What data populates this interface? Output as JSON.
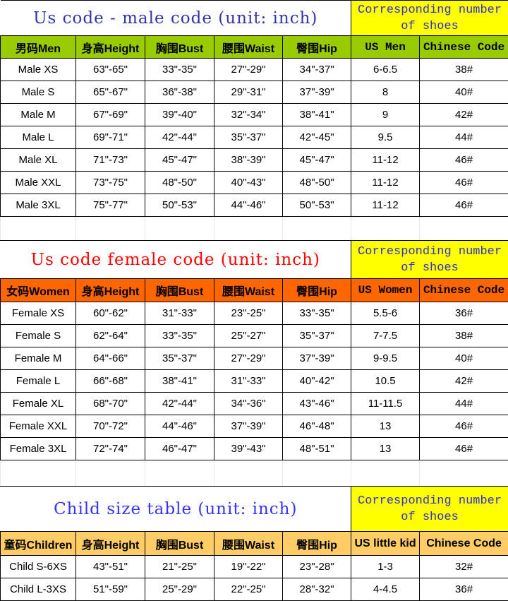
{
  "colors": {
    "male_header": "#99cc00",
    "female_header": "#ff6600",
    "child_header": "#ffcc66",
    "shoe_title": "#ffff00"
  },
  "sections": [
    {
      "title": "Us code - male code (unit: inch)",
      "title_color": "#3333aa",
      "shoe_title": "Corresponding number of shoes",
      "headers": [
        "男码Men",
        "身高Height",
        "胸围Bust",
        "腰围Waist",
        "臀围Hip",
        "US Men",
        "Chinese Code"
      ],
      "rows": [
        [
          "Male XS",
          "63\"-65\"",
          "33\"-35\"",
          "27\"-29\"",
          "34\"-37\"",
          "6-6.5",
          "38#"
        ],
        [
          "Male S",
          "65\"-67\"",
          "36\"-38\"",
          "29\"-31\"",
          "37\"-39\"",
          "8",
          "40#"
        ],
        [
          "Male M",
          "67\"-69\"",
          "39\"-40\"",
          "32\"-34\"",
          "38\"-41\"",
          "9",
          "42#"
        ],
        [
          "Male L",
          "69\"-71\"",
          "42\"-44\"",
          "35\"-37\"",
          "42\"-45\"",
          "9.5",
          "44#"
        ],
        [
          "Male XL",
          "71\"-73\"",
          "45\"-47\"",
          "38\"-39\"",
          "45\"-47\"",
          "11-12",
          "46#"
        ],
        [
          "Male XXL",
          "73\"-75\"",
          "48\"-50\"",
          "40\"-43\"",
          "48\"-50\"",
          "11-12",
          "46#"
        ],
        [
          "Male 3XL",
          "75\"-77\"",
          "50\"-53\"",
          "44\"-46\"",
          "50\"-53\"",
          "11-12",
          "46#"
        ]
      ]
    },
    {
      "title": "Us code female code (unit: inch)",
      "title_color": "#ff0000",
      "shoe_title": "Corresponding number of shoes",
      "headers": [
        "女码Women",
        "身高Height",
        "胸围Bust",
        "腰围Waist",
        "臀围Hip",
        "US Women",
        "Chinese Code"
      ],
      "rows": [
        [
          "Female XS",
          "60\"-62\"",
          "31\"-33\"",
          "23\"-25\"",
          "33\"-35\"",
          "5.5-6",
          "36#"
        ],
        [
          "Female S",
          "62\"-64\"",
          "33\"-35\"",
          "25\"-27\"",
          "35\"-37\"",
          "7-7.5",
          "38#"
        ],
        [
          "Female M",
          "64\"-66\"",
          "35\"-37\"",
          "27\"-29\"",
          "37\"-39\"",
          "9-9.5",
          "40#"
        ],
        [
          "Female L",
          "66\"-68\"",
          "38\"-41\"",
          "31\"-33\"",
          "40\"-42\"",
          "10.5",
          "42#"
        ],
        [
          "Female XL",
          "68\"-70\"",
          "42\"-44\"",
          "34\"-36\"",
          "43\"-46\"",
          "11-11.5",
          "44#"
        ],
        [
          "Female XXL",
          "70\"-72\"",
          "44\"-46\"",
          "37\"-39\"",
          "46\"-48\"",
          "13",
          "46#"
        ],
        [
          "Female 3XL",
          "72\"-74\"",
          "46\"-47\"",
          "39\"-43\"",
          "48\"-51\"",
          "13",
          "46#"
        ]
      ]
    },
    {
      "title": "Child size table (unit: inch)",
      "title_color": "#3333ff",
      "shoe_title": "Corresponding number of shoes",
      "headers": [
        "童码Children",
        "身高Height",
        "胸围Bust",
        "腰围Waist",
        "臀围Hip",
        "US little kid",
        "Chinese Code"
      ],
      "rows": [
        [
          "Child S-6XS",
          "43\"-51\"",
          "21\"-25\"",
          "19\"-22\"",
          "23\"-28\"",
          " 1-3",
          "32#"
        ],
        [
          "Child L-3XS",
          "51\"-59\"",
          "25\"-29\"",
          "22\"-25\"",
          "28\"-32\"",
          "4-4.5",
          "36#"
        ]
      ]
    }
  ]
}
